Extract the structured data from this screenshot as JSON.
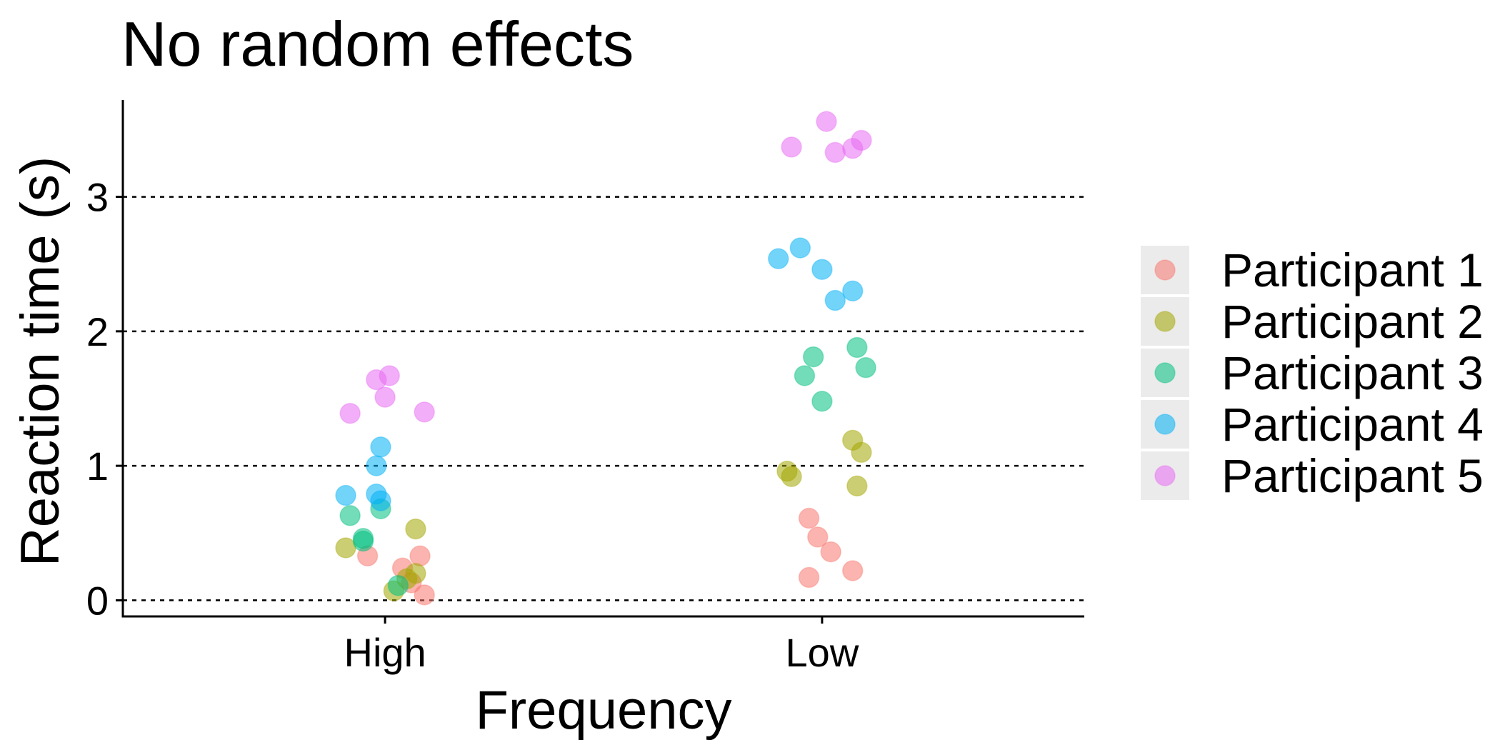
{
  "chart_data": {
    "type": "scatter",
    "title": "No random effects",
    "xlabel": "Frequency",
    "ylabel": "Reaction time (s)",
    "categories": [
      "High",
      "Low"
    ],
    "ylim": [
      -0.12,
      3.72
    ],
    "yticks": [
      0,
      1,
      2,
      3
    ],
    "grid": "horizontal dotted",
    "legend_position": "right",
    "series": [
      {
        "name": "Participant 1",
        "color": "#F8766D",
        "points": [
          {
            "category": "High",
            "jitter": -0.04,
            "y": 0.33
          },
          {
            "category": "High",
            "jitter": 0.04,
            "y": 0.24
          },
          {
            "category": "High",
            "jitter": 0.08,
            "y": 0.33
          },
          {
            "category": "High",
            "jitter": 0.06,
            "y": 0.13
          },
          {
            "category": "High",
            "jitter": 0.09,
            "y": 0.04
          },
          {
            "category": "Low",
            "jitter": -0.03,
            "y": 0.17
          },
          {
            "category": "Low",
            "jitter": -0.03,
            "y": 0.61
          },
          {
            "category": "Low",
            "jitter": -0.01,
            "y": 0.47
          },
          {
            "category": "Low",
            "jitter": 0.02,
            "y": 0.36
          },
          {
            "category": "Low",
            "jitter": 0.07,
            "y": 0.22
          }
        ]
      },
      {
        "name": "Participant 2",
        "color": "#A3A500",
        "points": [
          {
            "category": "High",
            "jitter": -0.09,
            "y": 0.39
          },
          {
            "category": "High",
            "jitter": 0.07,
            "y": 0.53
          },
          {
            "category": "High",
            "jitter": 0.07,
            "y": 0.2
          },
          {
            "category": "High",
            "jitter": 0.05,
            "y": 0.16
          },
          {
            "category": "High",
            "jitter": 0.02,
            "y": 0.07
          },
          {
            "category": "Low",
            "jitter": -0.08,
            "y": 0.96
          },
          {
            "category": "Low",
            "jitter": -0.07,
            "y": 0.92
          },
          {
            "category": "Low",
            "jitter": 0.07,
            "y": 1.19
          },
          {
            "category": "Low",
            "jitter": 0.09,
            "y": 1.1
          },
          {
            "category": "Low",
            "jitter": 0.08,
            "y": 0.85
          }
        ]
      },
      {
        "name": "Participant 3",
        "color": "#00BF7D",
        "points": [
          {
            "category": "High",
            "jitter": -0.08,
            "y": 0.63
          },
          {
            "category": "High",
            "jitter": -0.05,
            "y": 0.46
          },
          {
            "category": "High",
            "jitter": -0.05,
            "y": 0.44
          },
          {
            "category": "High",
            "jitter": -0.01,
            "y": 0.68
          },
          {
            "category": "High",
            "jitter": 0.03,
            "y": 0.11
          },
          {
            "category": "Low",
            "jitter": -0.04,
            "y": 1.67
          },
          {
            "category": "Low",
            "jitter": -0.02,
            "y": 1.81
          },
          {
            "category": "Low",
            "jitter": 0.0,
            "y": 1.48
          },
          {
            "category": "Low",
            "jitter": 0.08,
            "y": 1.88
          },
          {
            "category": "Low",
            "jitter": 0.1,
            "y": 1.73
          }
        ]
      },
      {
        "name": "Participant 4",
        "color": "#00B0F6",
        "points": [
          {
            "category": "High",
            "jitter": -0.09,
            "y": 0.78
          },
          {
            "category": "High",
            "jitter": -0.02,
            "y": 1.0
          },
          {
            "category": "High",
            "jitter": -0.01,
            "y": 1.14
          },
          {
            "category": "High",
            "jitter": -0.02,
            "y": 0.79
          },
          {
            "category": "High",
            "jitter": -0.01,
            "y": 0.74
          },
          {
            "category": "Low",
            "jitter": -0.1,
            "y": 2.54
          },
          {
            "category": "Low",
            "jitter": -0.05,
            "y": 2.62
          },
          {
            "category": "Low",
            "jitter": 0.0,
            "y": 2.46
          },
          {
            "category": "Low",
            "jitter": 0.03,
            "y": 2.23
          },
          {
            "category": "Low",
            "jitter": 0.07,
            "y": 2.3
          }
        ]
      },
      {
        "name": "Participant 5",
        "color": "#E76BF3",
        "points": [
          {
            "category": "High",
            "jitter": -0.08,
            "y": 1.39
          },
          {
            "category": "High",
            "jitter": -0.02,
            "y": 1.64
          },
          {
            "category": "High",
            "jitter": 0.01,
            "y": 1.67
          },
          {
            "category": "High",
            "jitter": 0.0,
            "y": 1.51
          },
          {
            "category": "High",
            "jitter": 0.09,
            "y": 1.4
          },
          {
            "category": "Low",
            "jitter": -0.07,
            "y": 3.37
          },
          {
            "category": "Low",
            "jitter": 0.01,
            "y": 3.56
          },
          {
            "category": "Low",
            "jitter": 0.03,
            "y": 3.33
          },
          {
            "category": "Low",
            "jitter": 0.07,
            "y": 3.36
          },
          {
            "category": "Low",
            "jitter": 0.09,
            "y": 3.42
          }
        ]
      }
    ]
  }
}
